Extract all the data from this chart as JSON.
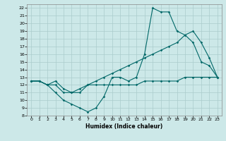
{
  "xlabel": "Humidex (Indice chaleur)",
  "background_color": "#cce8e8",
  "grid_color": "#aacccc",
  "line_color": "#006868",
  "xlim": [
    -0.5,
    23.5
  ],
  "ylim": [
    8,
    22.5
  ],
  "xticks": [
    0,
    1,
    2,
    3,
    4,
    5,
    6,
    7,
    8,
    9,
    10,
    11,
    12,
    13,
    14,
    15,
    16,
    17,
    18,
    19,
    20,
    21,
    22,
    23
  ],
  "yticks": [
    8,
    9,
    10,
    11,
    12,
    13,
    14,
    15,
    16,
    17,
    18,
    19,
    20,
    21,
    22
  ],
  "line1_x": [
    0,
    1,
    2,
    3,
    4,
    5,
    6,
    7,
    8,
    9,
    10,
    11,
    12,
    13,
    14,
    15,
    16,
    17,
    18,
    19,
    20,
    21,
    22,
    23
  ],
  "line1_y": [
    12.5,
    12.5,
    12.0,
    12.0,
    11.0,
    11.0,
    11.0,
    12.0,
    12.0,
    12.0,
    12.0,
    12.0,
    12.0,
    12.0,
    12.5,
    12.5,
    12.5,
    12.5,
    12.5,
    13.0,
    13.0,
    13.0,
    13.0,
    13.0
  ],
  "line2_x": [
    0,
    1,
    2,
    3,
    4,
    5,
    6,
    7,
    8,
    9,
    10,
    11,
    12,
    13,
    14,
    15,
    16,
    17,
    18,
    19,
    20,
    21,
    22,
    23
  ],
  "line2_y": [
    12.5,
    12.5,
    12.0,
    12.5,
    11.5,
    11.0,
    11.5,
    12.0,
    12.5,
    13.0,
    13.5,
    14.0,
    14.5,
    15.0,
    15.5,
    16.0,
    16.5,
    17.0,
    17.5,
    18.5,
    19.0,
    17.5,
    15.5,
    13.0
  ],
  "line3_x": [
    0,
    1,
    2,
    3,
    4,
    5,
    6,
    7,
    8,
    9,
    10,
    11,
    12,
    13,
    14,
    15,
    16,
    17,
    18,
    19,
    20,
    21,
    22,
    23
  ],
  "line3_y": [
    12.5,
    12.5,
    12.0,
    11.0,
    10.0,
    9.5,
    9.0,
    8.5,
    9.0,
    10.5,
    13.0,
    13.0,
    12.5,
    13.0,
    16.0,
    22.0,
    21.5,
    21.5,
    19.0,
    18.5,
    17.5,
    15.0,
    14.5,
    13.0
  ]
}
